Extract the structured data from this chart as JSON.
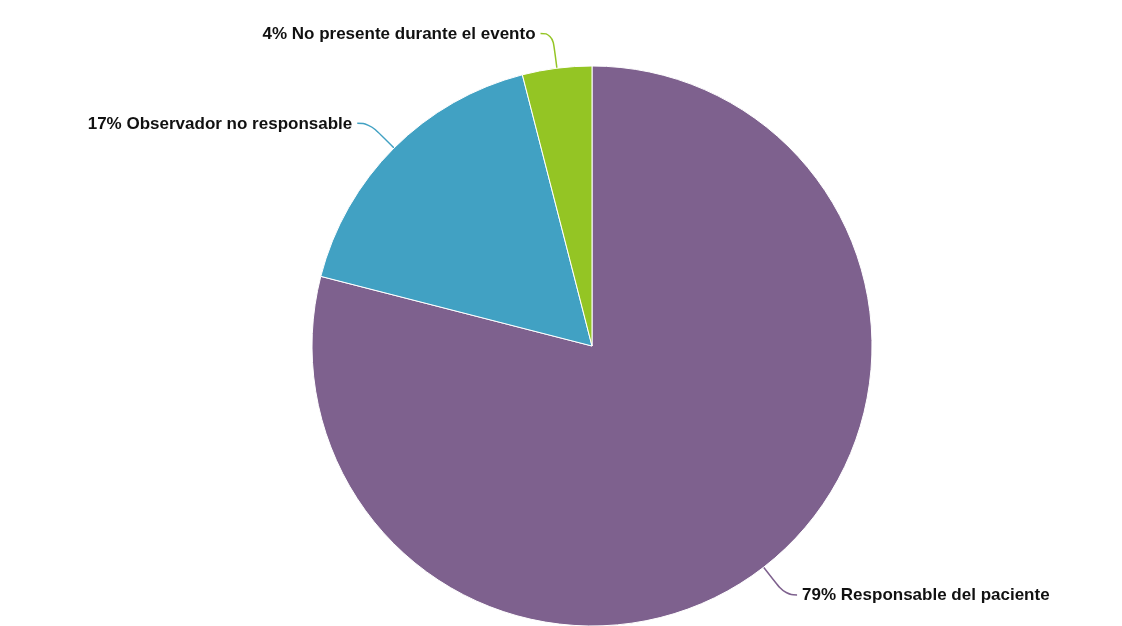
{
  "chart_data": {
    "type": "pie",
    "categories": [
      "Responsable del paciente",
      "Observador no responsable",
      "No presente durante el evento"
    ],
    "values": [
      79,
      17,
      4
    ],
    "colors": [
      "#7e618e",
      "#41a1c3",
      "#94c524"
    ],
    "value_labels": [
      "79%",
      "17%",
      "4%"
    ]
  }
}
